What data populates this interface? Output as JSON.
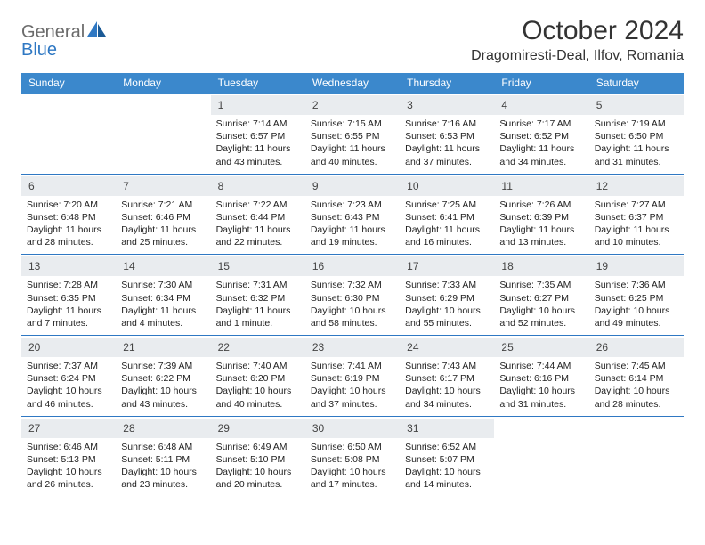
{
  "brand": {
    "line1": "General",
    "line2": "Blue"
  },
  "title": "October 2024",
  "location": "Dragomiresti-Deal, Ilfov, Romania",
  "colors": {
    "header_bg": "#3b88cc",
    "header_text": "#ffffff",
    "daynum_bg": "#e9ecef",
    "rule": "#2f78c3",
    "logo_gray": "#6b6b6b",
    "logo_blue": "#2f78c3",
    "text": "#222222"
  },
  "day_names": [
    "Sunday",
    "Monday",
    "Tuesday",
    "Wednesday",
    "Thursday",
    "Friday",
    "Saturday"
  ],
  "weeks": [
    [
      null,
      null,
      {
        "n": "1",
        "sr": "7:14 AM",
        "ss": "6:57 PM",
        "dl": "11 hours and 43 minutes."
      },
      {
        "n": "2",
        "sr": "7:15 AM",
        "ss": "6:55 PM",
        "dl": "11 hours and 40 minutes."
      },
      {
        "n": "3",
        "sr": "7:16 AM",
        "ss": "6:53 PM",
        "dl": "11 hours and 37 minutes."
      },
      {
        "n": "4",
        "sr": "7:17 AM",
        "ss": "6:52 PM",
        "dl": "11 hours and 34 minutes."
      },
      {
        "n": "5",
        "sr": "7:19 AM",
        "ss": "6:50 PM",
        "dl": "11 hours and 31 minutes."
      }
    ],
    [
      {
        "n": "6",
        "sr": "7:20 AM",
        "ss": "6:48 PM",
        "dl": "11 hours and 28 minutes."
      },
      {
        "n": "7",
        "sr": "7:21 AM",
        "ss": "6:46 PM",
        "dl": "11 hours and 25 minutes."
      },
      {
        "n": "8",
        "sr": "7:22 AM",
        "ss": "6:44 PM",
        "dl": "11 hours and 22 minutes."
      },
      {
        "n": "9",
        "sr": "7:23 AM",
        "ss": "6:43 PM",
        "dl": "11 hours and 19 minutes."
      },
      {
        "n": "10",
        "sr": "7:25 AM",
        "ss": "6:41 PM",
        "dl": "11 hours and 16 minutes."
      },
      {
        "n": "11",
        "sr": "7:26 AM",
        "ss": "6:39 PM",
        "dl": "11 hours and 13 minutes."
      },
      {
        "n": "12",
        "sr": "7:27 AM",
        "ss": "6:37 PM",
        "dl": "11 hours and 10 minutes."
      }
    ],
    [
      {
        "n": "13",
        "sr": "7:28 AM",
        "ss": "6:35 PM",
        "dl": "11 hours and 7 minutes."
      },
      {
        "n": "14",
        "sr": "7:30 AM",
        "ss": "6:34 PM",
        "dl": "11 hours and 4 minutes."
      },
      {
        "n": "15",
        "sr": "7:31 AM",
        "ss": "6:32 PM",
        "dl": "11 hours and 1 minute."
      },
      {
        "n": "16",
        "sr": "7:32 AM",
        "ss": "6:30 PM",
        "dl": "10 hours and 58 minutes."
      },
      {
        "n": "17",
        "sr": "7:33 AM",
        "ss": "6:29 PM",
        "dl": "10 hours and 55 minutes."
      },
      {
        "n": "18",
        "sr": "7:35 AM",
        "ss": "6:27 PM",
        "dl": "10 hours and 52 minutes."
      },
      {
        "n": "19",
        "sr": "7:36 AM",
        "ss": "6:25 PM",
        "dl": "10 hours and 49 minutes."
      }
    ],
    [
      {
        "n": "20",
        "sr": "7:37 AM",
        "ss": "6:24 PM",
        "dl": "10 hours and 46 minutes."
      },
      {
        "n": "21",
        "sr": "7:39 AM",
        "ss": "6:22 PM",
        "dl": "10 hours and 43 minutes."
      },
      {
        "n": "22",
        "sr": "7:40 AM",
        "ss": "6:20 PM",
        "dl": "10 hours and 40 minutes."
      },
      {
        "n": "23",
        "sr": "7:41 AM",
        "ss": "6:19 PM",
        "dl": "10 hours and 37 minutes."
      },
      {
        "n": "24",
        "sr": "7:43 AM",
        "ss": "6:17 PM",
        "dl": "10 hours and 34 minutes."
      },
      {
        "n": "25",
        "sr": "7:44 AM",
        "ss": "6:16 PM",
        "dl": "10 hours and 31 minutes."
      },
      {
        "n": "26",
        "sr": "7:45 AM",
        "ss": "6:14 PM",
        "dl": "10 hours and 28 minutes."
      }
    ],
    [
      {
        "n": "27",
        "sr": "6:46 AM",
        "ss": "5:13 PM",
        "dl": "10 hours and 26 minutes."
      },
      {
        "n": "28",
        "sr": "6:48 AM",
        "ss": "5:11 PM",
        "dl": "10 hours and 23 minutes."
      },
      {
        "n": "29",
        "sr": "6:49 AM",
        "ss": "5:10 PM",
        "dl": "10 hours and 20 minutes."
      },
      {
        "n": "30",
        "sr": "6:50 AM",
        "ss": "5:08 PM",
        "dl": "10 hours and 17 minutes."
      },
      {
        "n": "31",
        "sr": "6:52 AM",
        "ss": "5:07 PM",
        "dl": "10 hours and 14 minutes."
      },
      null,
      null
    ]
  ],
  "labels": {
    "sunrise": "Sunrise:",
    "sunset": "Sunset:",
    "daylight": "Daylight:"
  }
}
